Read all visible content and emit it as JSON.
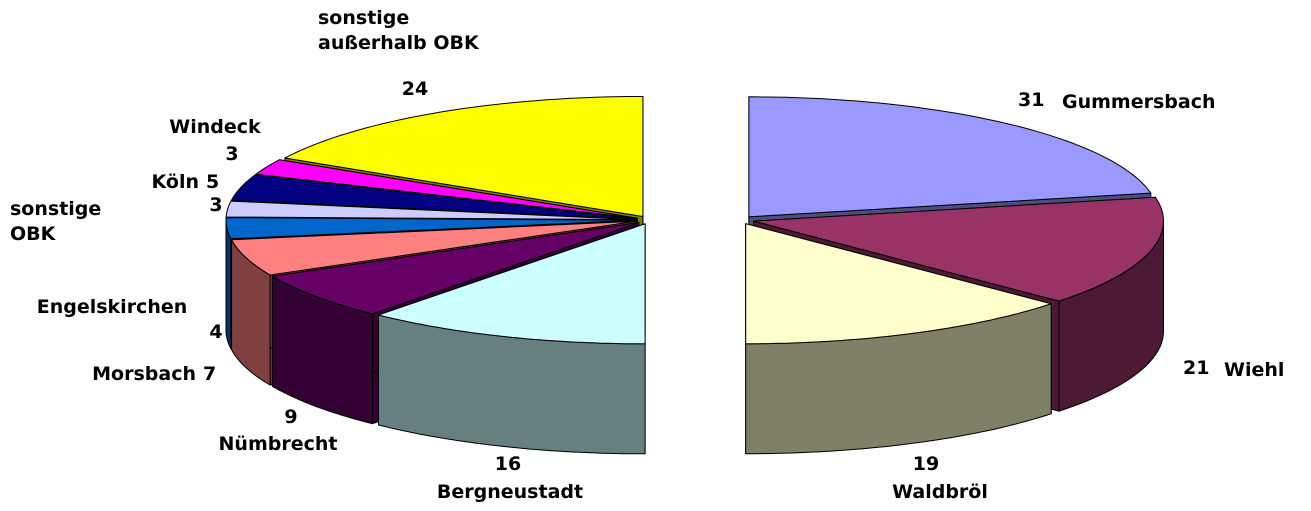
{
  "chart_data": {
    "type": "pie3d",
    "categories": [
      "Gummersbach",
      "Wiehl",
      "Waldbröl",
      "Bergneustadt",
      "Nümbrecht",
      "Morsbach",
      "Engelskirchen",
      "sonstige OBK",
      "Köln",
      "Windeck",
      "sonstige außerhalb OBK"
    ],
    "values": [
      31,
      21,
      19,
      16,
      9,
      7,
      4,
      3,
      5,
      3,
      24
    ],
    "colors": [
      "#9999ff",
      "#993366",
      "#ffffcc",
      "#ccffff",
      "#660066",
      "#ff8080",
      "#0066cc",
      "#ccccff",
      "#000080",
      "#ff00ff",
      "#ffff00"
    ]
  }
}
